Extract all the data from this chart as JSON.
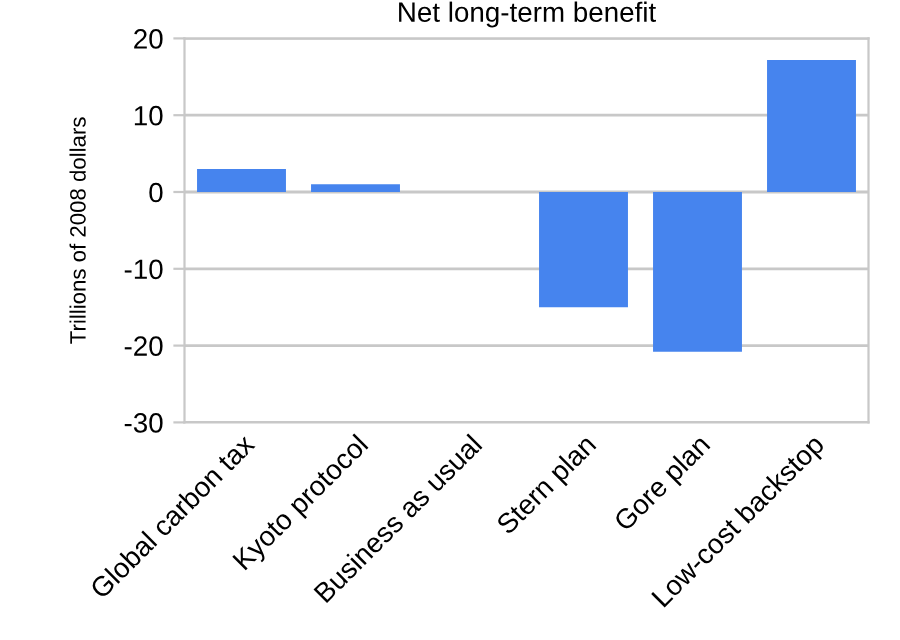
{
  "chart_data": {
    "type": "bar",
    "title": "Net long-term benefit",
    "ylabel": "Trillions of 2008 dollars",
    "categories": [
      "Global carbon tax",
      "Kyoto protocol",
      "Business as usual",
      "Stern plan",
      "Gore plan",
      "Low-cost backstop"
    ],
    "values": [
      3,
      1,
      0,
      -15,
      -20.8,
      17.2
    ],
    "color": "#4684ee",
    "ylim": [
      -30,
      20
    ],
    "yticks": [
      -30,
      -20,
      -10,
      0,
      10,
      20
    ],
    "grid": "y",
    "legend": false
  }
}
